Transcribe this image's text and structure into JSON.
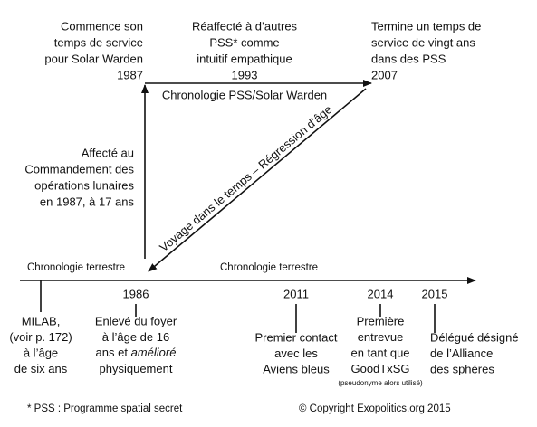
{
  "top_events": [
    {
      "lines": [
        "Commence son",
        "temps de service",
        "pour Solar Warden"
      ],
      "year": "1987"
    },
    {
      "lines": [
        "Réaffecté à d’autres",
        "PSS* comme",
        "intuitif empathique"
      ],
      "year": "1993"
    },
    {
      "lines": [
        "Termine un temps de",
        "service de vingt ans",
        "dans des PSS"
      ],
      "year": "2007"
    }
  ],
  "pss_timeline_label": "Chronologie PSS/Solar Warden",
  "lunar_assignment": {
    "lines": [
      "Affecté au",
      "Commandement des",
      "opérations lunaires",
      "en 1987, à 17 ans"
    ]
  },
  "time_travel_label": "Voyage dans le temps – Régression d’âge",
  "earth_timeline_labels": [
    "Chronologie terrestre",
    "Chronologie terrestre"
  ],
  "earth_events": [
    {
      "lines": [
        "MILAB,",
        "(voir p. 172)",
        "à l’âge",
        "de six ans"
      ]
    },
    {
      "year": "1986",
      "lines": [
        "Enlevé du foyer",
        "à l’âge de 16",
        [
          "ans et ",
          "amélioré"
        ],
        "physiquement"
      ]
    },
    {
      "year": "2011",
      "lines": [
        "Premier contact",
        "avec les",
        "Aviens bleus"
      ]
    },
    {
      "year": "2014",
      "lines": [
        "Première",
        "entrevue",
        "en tant que",
        "GoodTxSG"
      ],
      "note": "(pseudonyme alors utilisé)"
    },
    {
      "year": "2015",
      "lines": [
        "Délégué désigné",
        "de l’Alliance",
        "des sphères"
      ]
    }
  ],
  "footer": {
    "footnote": "* PSS : Programme spatial secret",
    "copyright": "© Copyright Exopolitics.org 2015"
  }
}
